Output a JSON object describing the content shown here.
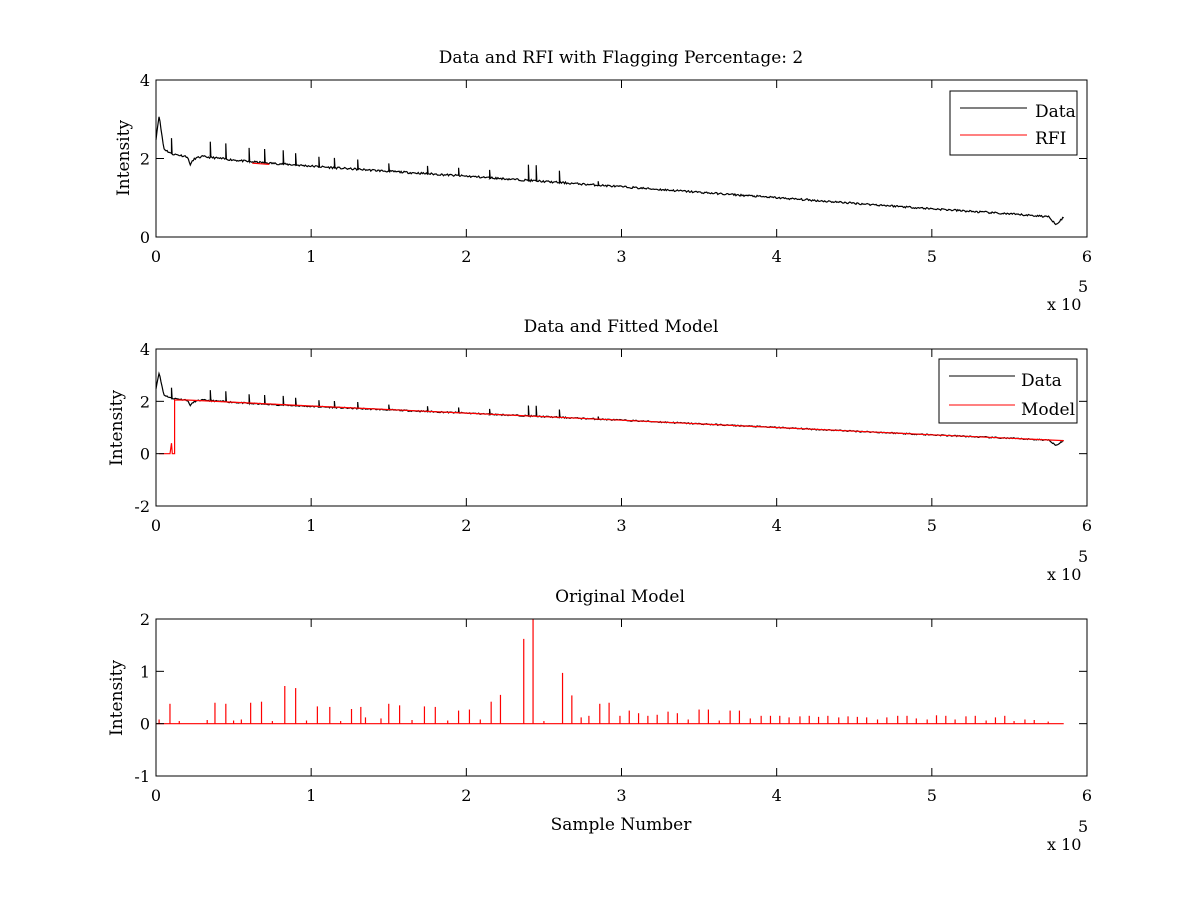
{
  "colors": {
    "data": "#000000",
    "rfi": "#ff0000",
    "model": "#ff0000"
  },
  "chart_data": [
    {
      "type": "line",
      "title": "Data and RFI with Flagging Percentage: 2",
      "xlabel": "",
      "ylabel": "Intensity",
      "xlim": [
        0,
        600000
      ],
      "ylim": [
        0,
        4
      ],
      "xticks": [
        "0",
        "1",
        "2",
        "3",
        "4",
        "5",
        "6"
      ],
      "yticks": [
        "0",
        "2",
        "4"
      ],
      "x_multiplier": {
        "base": "x 10",
        "exponent": "5"
      },
      "legend": {
        "position": "top-right",
        "entries": [
          "Data",
          "RFI"
        ]
      },
      "series": [
        {
          "name": "Data",
          "baseline": [
            [
              0,
              2.5
            ],
            [
              2000,
              3.1
            ],
            [
              5000,
              2.25
            ],
            [
              10000,
              2.12
            ],
            [
              20000,
              2.05
            ],
            [
              22000,
              1.85
            ],
            [
              25000,
              2.0
            ],
            [
              30000,
              2.05
            ],
            [
              60000,
              1.92
            ],
            [
              120000,
              1.75
            ],
            [
              200000,
              1.55
            ],
            [
              300000,
              1.28
            ],
            [
              400000,
              1.0
            ],
            [
              500000,
              0.72
            ],
            [
              575000,
              0.52
            ],
            [
              580000,
              0.33
            ],
            [
              585000,
              0.5
            ]
          ],
          "spikes": [
            [
              10000,
              0.4
            ],
            [
              35000,
              0.4
            ],
            [
              45000,
              0.4
            ],
            [
              60000,
              0.35
            ],
            [
              70000,
              0.35
            ],
            [
              82000,
              0.35
            ],
            [
              90000,
              0.3
            ],
            [
              105000,
              0.25
            ],
            [
              115000,
              0.25
            ],
            [
              130000,
              0.25
            ],
            [
              150000,
              0.2
            ],
            [
              175000,
              0.2
            ],
            [
              195000,
              0.2
            ],
            [
              215000,
              0.2
            ],
            [
              240000,
              0.4
            ],
            [
              245000,
              0.4
            ],
            [
              260000,
              0.3
            ],
            [
              285000,
              0.1
            ]
          ]
        },
        {
          "name": "RFI",
          "segments": [
            [
              [
                62000,
                1.88
              ],
              [
                73000,
                1.85
              ]
            ]
          ]
        }
      ]
    },
    {
      "type": "line",
      "title": "Data and Fitted Model",
      "xlabel": "",
      "ylabel": "Intensity",
      "xlim": [
        0,
        600000
      ],
      "ylim": [
        -2,
        4
      ],
      "xticks": [
        "0",
        "1",
        "2",
        "3",
        "4",
        "5",
        "6"
      ],
      "yticks": [
        "-2",
        "0",
        "2",
        "4"
      ],
      "x_multiplier": {
        "base": "x 10",
        "exponent": "5"
      },
      "legend": {
        "position": "top-right",
        "entries": [
          "Data",
          "Model"
        ]
      },
      "series": [
        {
          "name": "Data"
        },
        {
          "name": "Model",
          "points": [
            [
              2000,
              0.0
            ],
            [
              9000,
              0.0
            ],
            [
              10000,
              0.4
            ],
            [
              10500,
              0.0
            ],
            [
              12000,
              0.0
            ],
            [
              12000,
              2.05
            ],
            [
              20000,
              2.05
            ],
            [
              100000,
              1.82
            ],
            [
              200000,
              1.55
            ],
            [
              300000,
              1.28
            ],
            [
              400000,
              1.0
            ],
            [
              500000,
              0.72
            ],
            [
              585000,
              0.5
            ]
          ]
        }
      ]
    },
    {
      "type": "line",
      "title": "Original Model",
      "xlabel": "Sample Number",
      "ylabel": "Intensity",
      "xlim": [
        0,
        600000
      ],
      "ylim": [
        -1,
        2
      ],
      "xticks": [
        "0",
        "1",
        "2",
        "3",
        "4",
        "5",
        "6"
      ],
      "yticks": [
        "-1",
        "0",
        "1",
        "2"
      ],
      "x_multiplier": {
        "base": "x 10",
        "exponent": "5"
      },
      "legend": null,
      "series": [
        {
          "name": "",
          "line_range": [
            0,
            585000
          ],
          "spikes": [
            [
              2000,
              0.08
            ],
            [
              9000,
              0.38
            ],
            [
              15000,
              0.05
            ],
            [
              33000,
              0.07
            ],
            [
              38000,
              0.4
            ],
            [
              45000,
              0.38
            ],
            [
              50000,
              0.06
            ],
            [
              55000,
              0.08
            ],
            [
              61000,
              0.4
            ],
            [
              68000,
              0.42
            ],
            [
              75000,
              0.05
            ],
            [
              83000,
              0.72
            ],
            [
              90000,
              0.68
            ],
            [
              97000,
              0.06
            ],
            [
              104000,
              0.33
            ],
            [
              112000,
              0.32
            ],
            [
              119000,
              0.05
            ],
            [
              126000,
              0.28
            ],
            [
              132000,
              0.32
            ],
            [
              135000,
              0.12
            ],
            [
              145000,
              0.1
            ],
            [
              150000,
              0.38
            ],
            [
              157000,
              0.35
            ],
            [
              165000,
              0.07
            ],
            [
              173000,
              0.33
            ],
            [
              180000,
              0.32
            ],
            [
              188000,
              0.06
            ],
            [
              195000,
              0.25
            ],
            [
              202000,
              0.27
            ],
            [
              209000,
              0.08
            ],
            [
              216000,
              0.42
            ],
            [
              222000,
              0.55
            ],
            [
              237000,
              1.62
            ],
            [
              243000,
              2.0
            ],
            [
              250000,
              0.05
            ],
            [
              262000,
              0.97
            ],
            [
              268000,
              0.54
            ],
            [
              274000,
              0.12
            ],
            [
              279000,
              0.15
            ],
            [
              286000,
              0.38
            ],
            [
              292000,
              0.4
            ],
            [
              299000,
              0.15
            ],
            [
              305000,
              0.25
            ],
            [
              311000,
              0.2
            ],
            [
              317000,
              0.15
            ],
            [
              323000,
              0.17
            ],
            [
              330000,
              0.23
            ],
            [
              336000,
              0.2
            ],
            [
              343000,
              0.08
            ],
            [
              350000,
              0.27
            ],
            [
              356000,
              0.27
            ],
            [
              363000,
              0.06
            ],
            [
              370000,
              0.25
            ],
            [
              376000,
              0.25
            ],
            [
              383000,
              0.1
            ],
            [
              390000,
              0.15
            ],
            [
              396000,
              0.15
            ],
            [
              402000,
              0.15
            ],
            [
              408000,
              0.12
            ],
            [
              415000,
              0.14
            ],
            [
              421000,
              0.15
            ],
            [
              427000,
              0.13
            ],
            [
              433000,
              0.15
            ],
            [
              440000,
              0.12
            ],
            [
              446000,
              0.14
            ],
            [
              452000,
              0.13
            ],
            [
              458000,
              0.12
            ],
            [
              465000,
              0.08
            ],
            [
              471000,
              0.12
            ],
            [
              478000,
              0.15
            ],
            [
              484000,
              0.15
            ],
            [
              490000,
              0.1
            ],
            [
              497000,
              0.08
            ],
            [
              503000,
              0.16
            ],
            [
              509000,
              0.15
            ],
            [
              515000,
              0.08
            ],
            [
              522000,
              0.14
            ],
            [
              528000,
              0.15
            ],
            [
              535000,
              0.06
            ],
            [
              541000,
              0.12
            ],
            [
              547000,
              0.15
            ],
            [
              553000,
              0.05
            ],
            [
              560000,
              0.08
            ],
            [
              566000,
              0.07
            ],
            [
              575000,
              0.04
            ]
          ]
        }
      ]
    }
  ]
}
